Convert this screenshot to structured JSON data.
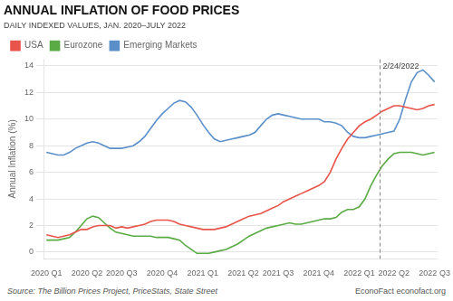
{
  "chart_data": {
    "type": "line",
    "title": "ANNUAL INFLATION OF FOOD PRICES",
    "subtitle": "DAILY INDEXED VALUES, JAN. 2020–JULY 2022",
    "y_label": "Annual Inflation (%)",
    "annotations": [
      {
        "text": "2/24/2022",
        "type": "vline"
      },
      {
        "text": "Source: The Billion Prices Project, PriceStats, State Street"
      },
      {
        "text": "EconoFact   econofact.org"
      }
    ],
    "categories": [
      "2020 Q1",
      null,
      null,
      null,
      null,
      null,
      null,
      "2020 Q2",
      null,
      null,
      null,
      null,
      null,
      "2020 Q3",
      null,
      null,
      null,
      null,
      null,
      null,
      "2020 Q4",
      null,
      null,
      null,
      null,
      null,
      null,
      "2021 Q1",
      null,
      null,
      null,
      null,
      null,
      null,
      "2021 Q2",
      null,
      null,
      null,
      null,
      null,
      "2021 Q3",
      null,
      null,
      null,
      null,
      null,
      null,
      "2021 Q4",
      null,
      null,
      null,
      null,
      null,
      null,
      "2022 Q1",
      null,
      null,
      null,
      null,
      null,
      "2022 Q2",
      null,
      null,
      null,
      null,
      null,
      null,
      "2022 Q3"
    ],
    "series": [
      {
        "name": "USA",
        "color": "#e8534a",
        "values": [
          1.3,
          1.2,
          1.1,
          1.2,
          1.3,
          1.5,
          1.7,
          1.7,
          1.9,
          2.0,
          2.0,
          2.0,
          1.8,
          1.9,
          1.8,
          1.9,
          2.0,
          2.1,
          2.3,
          2.4,
          2.4,
          2.4,
          2.3,
          2.1,
          2.0,
          1.9,
          1.8,
          1.7,
          1.7,
          1.7,
          1.8,
          1.9,
          2.1,
          2.3,
          2.5,
          2.7,
          2.8,
          2.9,
          3.1,
          3.3,
          3.5,
          3.8,
          4.0,
          4.2,
          4.4,
          4.6,
          4.8,
          5.0,
          5.3,
          6.0,
          7.0,
          7.8,
          8.5,
          9.0,
          9.5,
          9.8,
          10.0,
          10.3,
          10.6,
          10.8,
          11.0,
          11.0,
          10.9,
          10.8,
          10.7,
          10.8,
          11.0,
          11.1
        ]
      },
      {
        "name": "Eurozone",
        "color": "#5aaa45",
        "values": [
          0.9,
          0.9,
          0.9,
          1.0,
          1.1,
          1.5,
          2.0,
          2.5,
          2.7,
          2.6,
          2.2,
          1.8,
          1.5,
          1.4,
          1.3,
          1.2,
          1.2,
          1.2,
          1.2,
          1.1,
          1.1,
          1.1,
          1.0,
          0.9,
          0.5,
          0.2,
          -0.1,
          -0.1,
          -0.1,
          0.0,
          0.1,
          0.2,
          0.4,
          0.6,
          0.9,
          1.2,
          1.4,
          1.6,
          1.8,
          1.9,
          2.0,
          2.1,
          2.2,
          2.1,
          2.1,
          2.2,
          2.3,
          2.4,
          2.5,
          2.5,
          2.6,
          3.0,
          3.2,
          3.2,
          3.4,
          4.0,
          5.0,
          5.8,
          6.5,
          7.0,
          7.4,
          7.5,
          7.5,
          7.5,
          7.4,
          7.3,
          7.4,
          7.5
        ]
      },
      {
        "name": "Emerging Markets",
        "color": "#5b8fc9",
        "values": [
          7.5,
          7.4,
          7.3,
          7.3,
          7.5,
          7.8,
          8.0,
          8.2,
          8.3,
          8.2,
          8.0,
          7.8,
          7.8,
          7.8,
          7.9,
          8.0,
          8.3,
          8.7,
          9.3,
          9.9,
          10.4,
          10.8,
          11.2,
          11.4,
          11.3,
          10.9,
          10.3,
          9.6,
          9.0,
          8.5,
          8.3,
          8.4,
          8.5,
          8.6,
          8.7,
          8.8,
          9.0,
          9.5,
          10.0,
          10.3,
          10.4,
          10.3,
          10.2,
          10.1,
          10.0,
          10.0,
          10.0,
          10.0,
          9.8,
          9.8,
          9.7,
          9.5,
          9.0,
          8.7,
          8.6,
          8.6,
          8.7,
          8.8,
          8.9,
          9.0,
          9.1,
          10.0,
          11.5,
          12.8,
          13.5,
          13.7,
          13.3,
          12.8
        ]
      }
    ],
    "ylim": [
      -0.5,
      14.5
    ],
    "yticks": [
      0,
      2,
      4,
      6,
      8,
      10,
      12,
      14
    ],
    "grid": "y",
    "legend": "upper left"
  }
}
